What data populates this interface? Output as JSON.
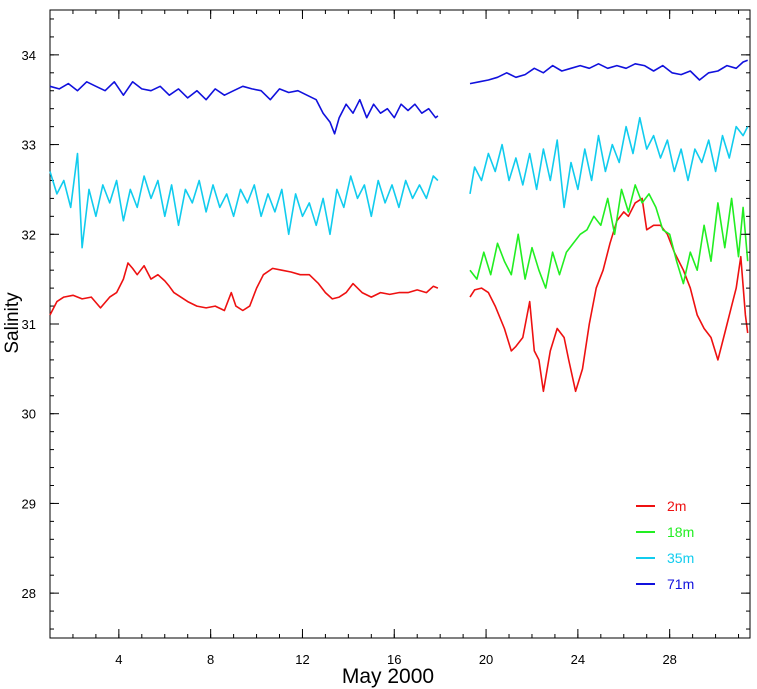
{
  "chart_data": {
    "type": "line",
    "xlabel": "May 2000",
    "ylabel": "Salinity",
    "xlim": [
      1,
      31.5
    ],
    "ylim": [
      27.5,
      34.5
    ],
    "x_ticks": [
      4,
      8,
      12,
      16,
      20,
      24,
      28
    ],
    "x_tick_labels": [
      "4",
      "8",
      "12",
      "16",
      "20",
      "24",
      "28"
    ],
    "y_ticks": [
      28,
      29,
      30,
      31,
      32,
      33,
      34
    ],
    "y_tick_labels": [
      "28",
      "29",
      "30",
      "31",
      "32",
      "33",
      "34"
    ],
    "grid": false,
    "legend_position": "bottom-right",
    "series": [
      {
        "name": "2m",
        "color": "#ee1111",
        "x": [
          1.0,
          1.3,
          1.6,
          2.0,
          2.4,
          2.8,
          3.2,
          3.6,
          3.9,
          4.2,
          4.4,
          4.6,
          4.8,
          5.1,
          5.4,
          5.7,
          6.0,
          6.2,
          6.4,
          6.7,
          7.0,
          7.4,
          7.8,
          8.2,
          8.6,
          8.9,
          9.1,
          9.4,
          9.7,
          10.0,
          10.3,
          10.7,
          11.1,
          11.5,
          11.9,
          12.3,
          12.7,
          13.0,
          13.3,
          13.6,
          13.9,
          14.2,
          14.6,
          15.0,
          15.4,
          15.8,
          16.2,
          16.6,
          17.0,
          17.4,
          17.7,
          17.9,
          null,
          19.3,
          19.5,
          19.8,
          20.1,
          20.4,
          20.8,
          21.1,
          21.3,
          21.6,
          21.9,
          22.1,
          22.3,
          22.5,
          22.8,
          23.1,
          23.4,
          23.6,
          23.9,
          24.2,
          24.5,
          24.8,
          25.1,
          25.4,
          25.7,
          26.0,
          26.2,
          26.5,
          26.8,
          27.0,
          27.3,
          27.6,
          27.9,
          28.2,
          28.6,
          28.9,
          29.2,
          29.5,
          29.8,
          30.1,
          30.4,
          30.7,
          30.9,
          31.1,
          31.3,
          31.4
        ],
        "y": [
          31.1,
          31.25,
          31.3,
          31.32,
          31.28,
          31.3,
          31.18,
          31.3,
          31.35,
          31.5,
          31.68,
          31.62,
          31.55,
          31.65,
          31.5,
          31.55,
          31.48,
          31.42,
          31.35,
          31.3,
          31.25,
          31.2,
          31.18,
          31.2,
          31.15,
          31.35,
          31.2,
          31.15,
          31.2,
          31.4,
          31.55,
          31.62,
          31.6,
          31.58,
          31.55,
          31.55,
          31.45,
          31.35,
          31.28,
          31.3,
          31.35,
          31.45,
          31.35,
          31.3,
          31.35,
          31.33,
          31.35,
          31.35,
          31.38,
          31.35,
          31.42,
          31.4,
          null,
          31.3,
          31.38,
          31.4,
          31.35,
          31.2,
          30.95,
          30.7,
          30.75,
          30.85,
          31.25,
          30.7,
          30.6,
          30.25,
          30.7,
          30.95,
          30.85,
          30.6,
          30.25,
          30.5,
          31.0,
          31.4,
          31.6,
          31.9,
          32.15,
          32.25,
          32.2,
          32.35,
          32.4,
          32.05,
          32.1,
          32.1,
          32.0,
          31.8,
          31.6,
          31.4,
          31.1,
          30.95,
          30.85,
          30.6,
          30.9,
          31.2,
          31.4,
          31.75,
          31.1,
          30.9
        ]
      },
      {
        "name": "18m",
        "color": "#22ee22",
        "x": [
          19.3,
          19.6,
          19.9,
          20.2,
          20.5,
          20.8,
          21.1,
          21.4,
          21.7,
          22.0,
          22.3,
          22.6,
          22.9,
          23.2,
          23.5,
          23.8,
          24.1,
          24.4,
          24.7,
          25.0,
          25.3,
          25.6,
          25.9,
          26.2,
          26.5,
          26.8,
          27.1,
          27.4,
          27.7,
          28.0,
          28.3,
          28.6,
          28.9,
          29.2,
          29.5,
          29.8,
          30.1,
          30.4,
          30.7,
          31.0,
          31.2,
          31.4
        ],
        "y": [
          31.6,
          31.5,
          31.8,
          31.55,
          31.9,
          31.7,
          31.55,
          32.0,
          31.5,
          31.85,
          31.6,
          31.4,
          31.8,
          31.55,
          31.8,
          31.9,
          32.0,
          32.05,
          32.2,
          32.1,
          32.4,
          32.0,
          32.5,
          32.25,
          32.55,
          32.35,
          32.45,
          32.3,
          32.05,
          32.0,
          31.7,
          31.45,
          31.8,
          31.6,
          32.1,
          31.7,
          32.35,
          31.85,
          32.4,
          31.75,
          32.3,
          31.7
        ]
      },
      {
        "name": "35m",
        "color": "#11ccee",
        "x": [
          1.0,
          1.3,
          1.6,
          1.9,
          2.2,
          2.4,
          2.7,
          3.0,
          3.3,
          3.6,
          3.9,
          4.2,
          4.5,
          4.8,
          5.1,
          5.4,
          5.7,
          6.0,
          6.3,
          6.6,
          6.9,
          7.2,
          7.5,
          7.8,
          8.1,
          8.4,
          8.7,
          9.0,
          9.3,
          9.6,
          9.9,
          10.2,
          10.5,
          10.8,
          11.1,
          11.4,
          11.7,
          12.0,
          12.3,
          12.6,
          12.9,
          13.2,
          13.5,
          13.8,
          14.1,
          14.4,
          14.7,
          15.0,
          15.3,
          15.6,
          15.9,
          16.2,
          16.5,
          16.8,
          17.1,
          17.4,
          17.7,
          17.9,
          null,
          19.3,
          19.5,
          19.8,
          20.1,
          20.4,
          20.7,
          21.0,
          21.3,
          21.6,
          21.9,
          22.2,
          22.5,
          22.8,
          23.1,
          23.4,
          23.7,
          24.0,
          24.3,
          24.6,
          24.9,
          25.2,
          25.5,
          25.8,
          26.1,
          26.4,
          26.7,
          27.0,
          27.3,
          27.6,
          27.9,
          28.2,
          28.5,
          28.8,
          29.1,
          29.4,
          29.7,
          30.0,
          30.3,
          30.6,
          30.9,
          31.2,
          31.4
        ],
        "y": [
          32.7,
          32.45,
          32.6,
          32.3,
          32.9,
          31.85,
          32.5,
          32.2,
          32.55,
          32.35,
          32.6,
          32.15,
          32.5,
          32.3,
          32.65,
          32.4,
          32.6,
          32.2,
          32.55,
          32.1,
          32.5,
          32.35,
          32.6,
          32.25,
          32.55,
          32.3,
          32.45,
          32.2,
          32.5,
          32.35,
          32.55,
          32.2,
          32.45,
          32.25,
          32.5,
          32.0,
          32.45,
          32.2,
          32.35,
          32.1,
          32.4,
          32.0,
          32.5,
          32.3,
          32.65,
          32.4,
          32.55,
          32.2,
          32.6,
          32.35,
          32.55,
          32.3,
          32.6,
          32.4,
          32.55,
          32.4,
          32.65,
          32.6,
          null,
          32.45,
          32.75,
          32.6,
          32.9,
          32.7,
          33.0,
          32.6,
          32.85,
          32.55,
          32.9,
          32.5,
          32.95,
          32.6,
          33.05,
          32.3,
          32.8,
          32.5,
          32.95,
          32.6,
          33.1,
          32.7,
          33.0,
          32.8,
          33.2,
          32.9,
          33.3,
          32.95,
          33.1,
          32.85,
          33.05,
          32.7,
          32.95,
          32.6,
          32.95,
          32.8,
          33.05,
          32.7,
          33.1,
          32.85,
          33.2,
          33.1,
          33.2
        ]
      },
      {
        "name": "71m",
        "color": "#1111dd",
        "x": [
          1.0,
          1.4,
          1.8,
          2.2,
          2.6,
          3.0,
          3.4,
          3.8,
          4.2,
          4.6,
          5.0,
          5.4,
          5.8,
          6.2,
          6.6,
          7.0,
          7.4,
          7.8,
          8.2,
          8.6,
          9.0,
          9.4,
          9.8,
          10.2,
          10.6,
          11.0,
          11.4,
          11.8,
          12.2,
          12.6,
          12.9,
          13.2,
          13.4,
          13.6,
          13.9,
          14.2,
          14.5,
          14.8,
          15.1,
          15.4,
          15.7,
          16.0,
          16.3,
          16.6,
          16.9,
          17.2,
          17.5,
          17.8,
          17.9,
          null,
          19.3,
          19.7,
          20.1,
          20.5,
          20.9,
          21.3,
          21.7,
          22.1,
          22.5,
          22.9,
          23.3,
          23.7,
          24.1,
          24.5,
          24.9,
          25.3,
          25.7,
          26.1,
          26.5,
          26.9,
          27.3,
          27.7,
          28.1,
          28.5,
          28.9,
          29.3,
          29.7,
          30.1,
          30.5,
          30.9,
          31.2,
          31.4
        ],
        "y": [
          33.65,
          33.62,
          33.68,
          33.6,
          33.7,
          33.65,
          33.6,
          33.7,
          33.55,
          33.7,
          33.62,
          33.6,
          33.65,
          33.55,
          33.62,
          33.52,
          33.6,
          33.5,
          33.62,
          33.55,
          33.6,
          33.65,
          33.62,
          33.6,
          33.5,
          33.62,
          33.58,
          33.6,
          33.55,
          33.5,
          33.35,
          33.25,
          33.12,
          33.3,
          33.45,
          33.35,
          33.5,
          33.3,
          33.45,
          33.35,
          33.4,
          33.3,
          33.45,
          33.38,
          33.45,
          33.35,
          33.4,
          33.3,
          33.32,
          null,
          33.68,
          33.7,
          33.72,
          33.75,
          33.8,
          33.75,
          33.78,
          33.85,
          33.8,
          33.88,
          33.82,
          33.85,
          33.88,
          33.85,
          33.9,
          33.85,
          33.88,
          33.85,
          33.9,
          33.88,
          33.82,
          33.88,
          33.8,
          33.78,
          33.82,
          33.72,
          33.8,
          33.82,
          33.88,
          33.85,
          33.92,
          33.94
        ]
      }
    ]
  }
}
